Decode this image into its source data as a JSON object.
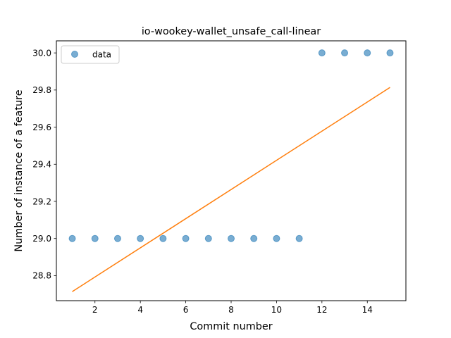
{
  "chart_data": {
    "type": "scatter",
    "title": "io-wookey-wallet_unsafe_call-linear",
    "xlabel": "Commit number",
    "ylabel": "Number of instance of a feature",
    "xlim": [
      0.3,
      15.7
    ],
    "ylim": [
      28.665,
      30.065
    ],
    "xticks": [
      2,
      4,
      6,
      8,
      10,
      12,
      14
    ],
    "xtick_labels": [
      "2",
      "4",
      "6",
      "8",
      "10",
      "12",
      "14"
    ],
    "yticks": [
      28.8,
      29.0,
      29.2,
      29.4,
      29.6,
      29.8,
      30.0
    ],
    "ytick_labels": [
      "28.8",
      "29.0",
      "29.2",
      "29.4",
      "29.6",
      "29.8",
      "30.0"
    ],
    "grid": false,
    "legend_position": "top-left",
    "series": [
      {
        "name": "data",
        "kind": "scatter",
        "color": "#1f77b4",
        "x": [
          1,
          2,
          3,
          4,
          5,
          6,
          7,
          8,
          9,
          10,
          11,
          12,
          13,
          14,
          15
        ],
        "y": [
          29,
          29,
          29,
          29,
          29,
          29,
          29,
          29,
          29,
          29,
          29,
          30,
          30,
          30,
          30
        ]
      },
      {
        "kind": "line",
        "color": "#ff7f0e",
        "x": [
          1,
          15
        ],
        "y": [
          28.714,
          29.814
        ]
      }
    ]
  }
}
